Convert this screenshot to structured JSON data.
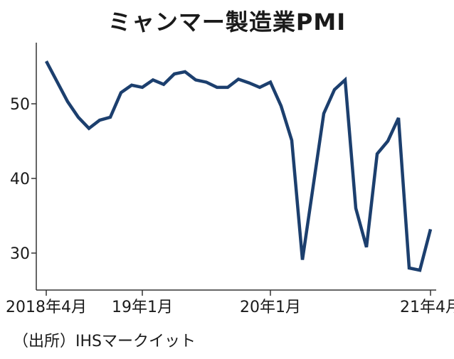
{
  "chart_data": {
    "type": "line",
    "title": "ミャンマー製造業PMI",
    "x_tick_labels": [
      "2018年4月",
      "19年1月",
      "20年1月",
      "21年4月"
    ],
    "x_tick_index": [
      0,
      9,
      21,
      36
    ],
    "yticks": [
      30,
      40,
      50
    ],
    "ylim": [
      25,
      58
    ],
    "grid": false,
    "series": [
      {
        "color": "#1c3f6e",
        "x": [
          "2018-04",
          "2018-05",
          "2018-06",
          "2018-07",
          "2018-08",
          "2018-09",
          "2018-10",
          "2018-11",
          "2018-12",
          "2019-01",
          "2019-02",
          "2019-03",
          "2019-04",
          "2019-05",
          "2019-06",
          "2019-07",
          "2019-08",
          "2019-09",
          "2019-10",
          "2019-11",
          "2019-12",
          "2020-01",
          "2020-02",
          "2020-03",
          "2020-04",
          "2020-05",
          "2020-06",
          "2020-07",
          "2020-08",
          "2020-09",
          "2020-10",
          "2020-11",
          "2020-12",
          "2021-01",
          "2021-02",
          "2021-03",
          "2021-04"
        ],
        "values": [
          55.7,
          53.0,
          50.3,
          48.2,
          46.7,
          47.8,
          48.2,
          51.5,
          52.5,
          52.2,
          53.2,
          52.6,
          54.0,
          54.3,
          53.2,
          52.9,
          52.2,
          52.2,
          53.3,
          52.8,
          52.2,
          52.9,
          49.7,
          45.1,
          29.1,
          38.9,
          48.7,
          51.9,
          53.2,
          36.0,
          30.8,
          43.3,
          45.0,
          48.1,
          28.0,
          27.7,
          33.2
        ]
      }
    ]
  },
  "source": "（出所）IHSマークイット"
}
